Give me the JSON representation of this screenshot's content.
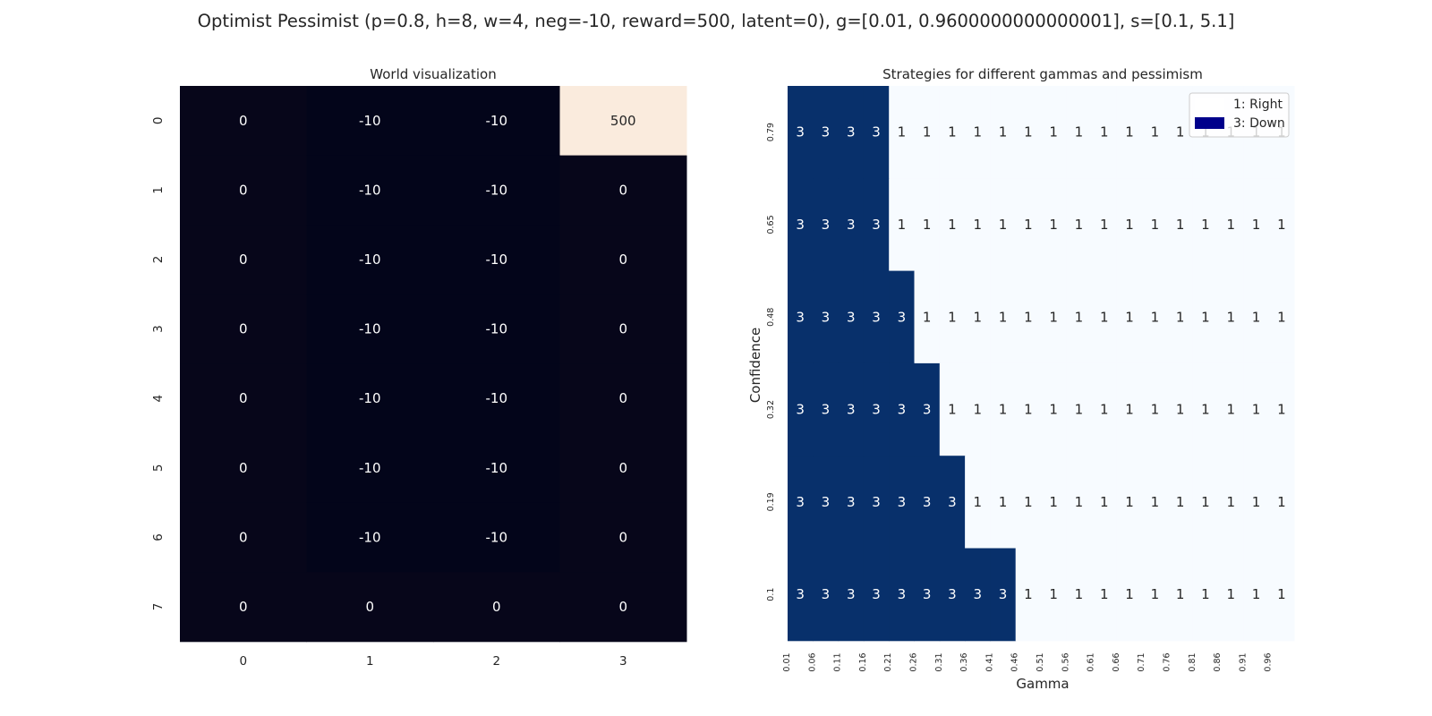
{
  "figure": {
    "suptitle": "Optimist Pessimist (p=0.8, h=8, w=4, neg=-10, reward=500, latent=0), g=[0.01, 0.9600000000000001], s=[0.1, 5.1]"
  },
  "colors": {
    "world_dark": "#07061a",
    "world_mid": "#03051a",
    "world_max": "#faebdd",
    "strategy_down": "#08306b",
    "strategy_right": "#f7fbff",
    "legend_swatch_down": "#00008b",
    "legend_swatch_right": "#ffffff",
    "text_on_dark": "#ffffff",
    "text_on_light": "#262626"
  },
  "chart_data": [
    {
      "type": "heatmap",
      "title": "World visualization",
      "xlabel": "",
      "ylabel": "",
      "x_ticks": [
        "0",
        "1",
        "2",
        "3"
      ],
      "y_ticks": [
        "0",
        "1",
        "2",
        "3",
        "4",
        "5",
        "6",
        "7"
      ],
      "grid": false,
      "colorbar": false,
      "values": [
        [
          0,
          -10,
          -10,
          500
        ],
        [
          0,
          -10,
          -10,
          0
        ],
        [
          0,
          -10,
          -10,
          0
        ],
        [
          0,
          -10,
          -10,
          0
        ],
        [
          0,
          -10,
          -10,
          0
        ],
        [
          0,
          -10,
          -10,
          0
        ],
        [
          0,
          -10,
          -10,
          0
        ],
        [
          0,
          0,
          0,
          0
        ]
      ]
    },
    {
      "type": "heatmap",
      "title": "Strategies for different gammas and pessimism",
      "xlabel": "Gamma",
      "ylabel": "Confidence",
      "x_ticks": [
        "0.01",
        "0.06",
        "0.11",
        "0.16",
        "0.21",
        "0.26",
        "0.31",
        "0.36",
        "0.41",
        "0.46",
        "0.51",
        "0.56",
        "0.61",
        "0.66",
        "0.71",
        "0.76",
        "0.81",
        "0.86",
        "0.91",
        "0.96"
      ],
      "y_ticks": [
        "0.79",
        "0.65",
        "0.48",
        "0.32",
        "0.19",
        "0.1"
      ],
      "grid": false,
      "legend_position": "top-right",
      "legend": [
        {
          "label": "1: Right",
          "value": 1
        },
        {
          "label": "3: Down",
          "value": 3
        }
      ],
      "values": [
        [
          3,
          3,
          3,
          3,
          1,
          1,
          1,
          1,
          1,
          1,
          1,
          1,
          1,
          1,
          1,
          1,
          1,
          1,
          1,
          1
        ],
        [
          3,
          3,
          3,
          3,
          1,
          1,
          1,
          1,
          1,
          1,
          1,
          1,
          1,
          1,
          1,
          1,
          1,
          1,
          1,
          1
        ],
        [
          3,
          3,
          3,
          3,
          3,
          1,
          1,
          1,
          1,
          1,
          1,
          1,
          1,
          1,
          1,
          1,
          1,
          1,
          1,
          1
        ],
        [
          3,
          3,
          3,
          3,
          3,
          3,
          1,
          1,
          1,
          1,
          1,
          1,
          1,
          1,
          1,
          1,
          1,
          1,
          1,
          1
        ],
        [
          3,
          3,
          3,
          3,
          3,
          3,
          3,
          1,
          1,
          1,
          1,
          1,
          1,
          1,
          1,
          1,
          1,
          1,
          1,
          1
        ],
        [
          3,
          3,
          3,
          3,
          3,
          3,
          3,
          3,
          3,
          1,
          1,
          1,
          1,
          1,
          1,
          1,
          1,
          1,
          1,
          1
        ]
      ]
    }
  ]
}
